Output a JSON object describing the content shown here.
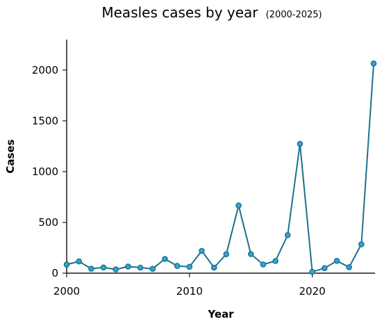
{
  "chart_data": {
    "type": "line",
    "title": "Measles cases by year",
    "subtitle": "(2000-2025)",
    "xlabel": "Year",
    "ylabel": "Cases",
    "xlim": [
      2000,
      2025
    ],
    "ylim": [
      0,
      2300
    ],
    "x_ticks": [
      2000,
      2010,
      2020
    ],
    "y_ticks": [
      0,
      500,
      1000,
      1500,
      2000
    ],
    "grid": false,
    "legend": "none",
    "series": [
      {
        "color": "#1f6f8b",
        "marker_color": "#2aa8d4",
        "x": [
          2000,
          2001,
          2002,
          2003,
          2004,
          2005,
          2006,
          2007,
          2008,
          2009,
          2010,
          2011,
          2012,
          2013,
          2014,
          2015,
          2016,
          2017,
          2018,
          2019,
          2020,
          2021,
          2022,
          2023,
          2024,
          2025
        ],
        "values": [
          85,
          116,
          44,
          56,
          37,
          66,
          55,
          43,
          140,
          71,
          63,
          220,
          55,
          187,
          667,
          188,
          86,
          120,
          375,
          1274,
          13,
          49,
          121,
          59,
          285,
          2065
        ]
      }
    ]
  }
}
